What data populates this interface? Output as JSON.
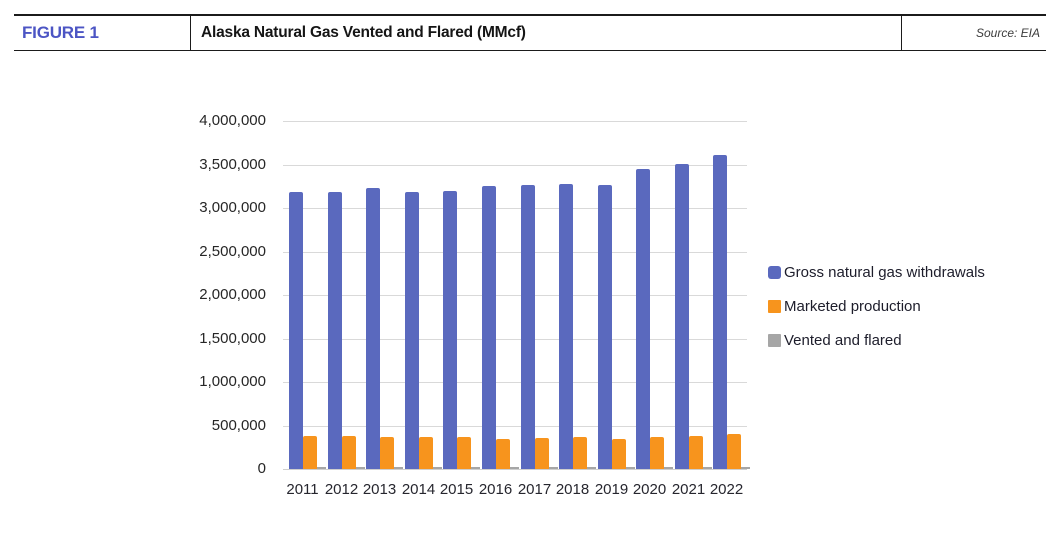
{
  "header": {
    "figure_label": "FIGURE 1",
    "title": "Alaska Natural Gas Vented and Flared (MMcf)",
    "source": "Source: EIA"
  },
  "colors": {
    "figure_label_blue": "#4c55c4",
    "series_gross_blue": "#5a69be",
    "series_marketed_orange": "#f7941d",
    "series_vented_gray": "#a6a6a6",
    "gridline_gray": "#d9d9d9"
  },
  "chart_data": {
    "type": "bar",
    "title": "",
    "xlabel": "",
    "ylabel": "",
    "categories": [
      "2011",
      "2012",
      "2013",
      "2014",
      "2015",
      "2016",
      "2017",
      "2018",
      "2019",
      "2020",
      "2021",
      "2022"
    ],
    "series": [
      {
        "name": "Gross natural gas withdrawals",
        "color": "#5a69be",
        "values": [
          3180000,
          3180000,
          3230000,
          3185000,
          3190000,
          3250000,
          3270000,
          3280000,
          3270000,
          3450000,
          3500000,
          3610000
        ]
      },
      {
        "name": "Marketed production",
        "color": "#f7941d",
        "values": [
          375000,
          380000,
          365000,
          370000,
          365000,
          350000,
          360000,
          365000,
          350000,
          365000,
          375000,
          400000
        ]
      },
      {
        "name": "Vented and flared",
        "color": "#a6a6a6",
        "values": [
          15000,
          15000,
          15000,
          15000,
          15000,
          15000,
          15000,
          15000,
          15000,
          15000,
          15000,
          15000
        ]
      }
    ],
    "ylim": [
      0,
      4000000
    ],
    "ytick_step": 500000,
    "ytick_labels": [
      "0",
      "500,000",
      "1,000,000",
      "1,500,000",
      "2,000,000",
      "2,500,000",
      "3,000,000",
      "3,500,000",
      "4,000,000"
    ],
    "grid": true,
    "legend_position": "right"
  }
}
